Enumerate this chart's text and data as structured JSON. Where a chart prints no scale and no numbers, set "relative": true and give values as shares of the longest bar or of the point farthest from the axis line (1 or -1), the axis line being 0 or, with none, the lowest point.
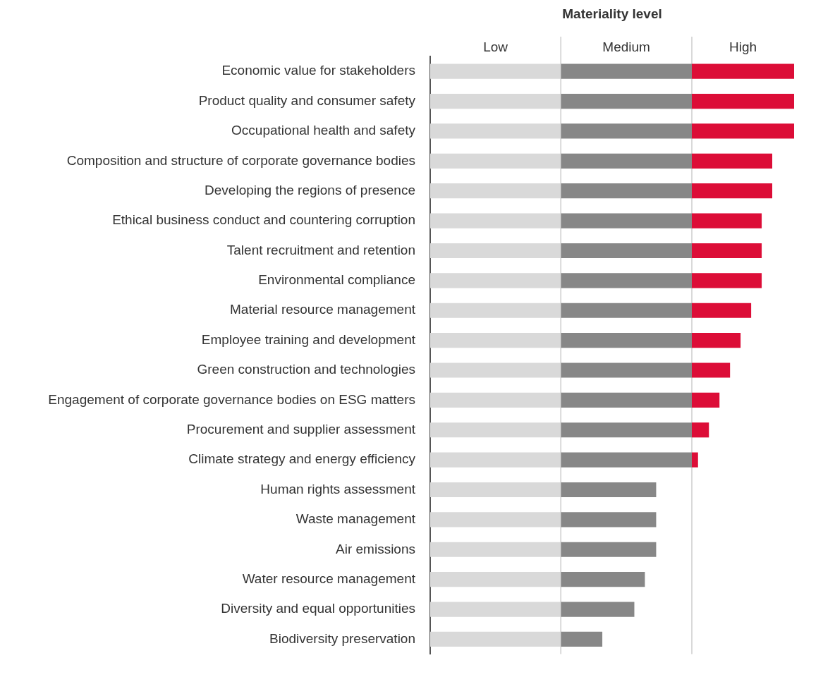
{
  "chart_data": {
    "type": "bar",
    "orientation": "horizontal",
    "stacked": true,
    "relative": true,
    "title": "Materiality level",
    "categories": [
      "Economic value for stakeholders",
      "Product quality and consumer safety",
      "Occupational health and safety",
      "Composition and structure of corporate governance bodies",
      "Developing the regions of presence",
      "Ethical business conduct and countering corruption",
      "Talent recruitment and retention",
      "Environmental compliance",
      "Material resource management",
      "Employee training and development",
      "Green construction and technologies",
      "Engagement of corporate governance bodies on ESG matters",
      "Procurement and supplier assessment",
      "Climate strategy and energy efficiency",
      "Human rights assessment",
      "Waste management",
      "Air emissions",
      "Water resource management",
      "Diversity and equal opportunities",
      "Biodiversity preservation"
    ],
    "series": [
      {
        "name": "Low",
        "color": "#d9d9d9",
        "values": [
          0.359,
          0.359,
          0.359,
          0.359,
          0.359,
          0.359,
          0.359,
          0.359,
          0.359,
          0.359,
          0.359,
          0.359,
          0.359,
          0.359,
          0.359,
          0.359,
          0.359,
          0.359,
          0.359,
          0.359
        ]
      },
      {
        "name": "Medium",
        "color": "#878787",
        "values": [
          0.36,
          0.36,
          0.36,
          0.36,
          0.36,
          0.36,
          0.36,
          0.36,
          0.36,
          0.36,
          0.36,
          0.36,
          0.36,
          0.36,
          0.262,
          0.262,
          0.262,
          0.231,
          0.202,
          0.114
        ]
      },
      {
        "name": "High",
        "color": "#dc0d37",
        "values": [
          0.281,
          0.281,
          0.281,
          0.221,
          0.221,
          0.192,
          0.192,
          0.192,
          0.163,
          0.134,
          0.105,
          0.076,
          0.047,
          0.017,
          null,
          null,
          null,
          null,
          null,
          null
        ]
      }
    ],
    "ref_lines": [
      {
        "axis": "x",
        "value": 0.359,
        "color": "#cccccc"
      },
      {
        "axis": "x",
        "value": 0.719,
        "color": "#cccccc"
      }
    ]
  }
}
